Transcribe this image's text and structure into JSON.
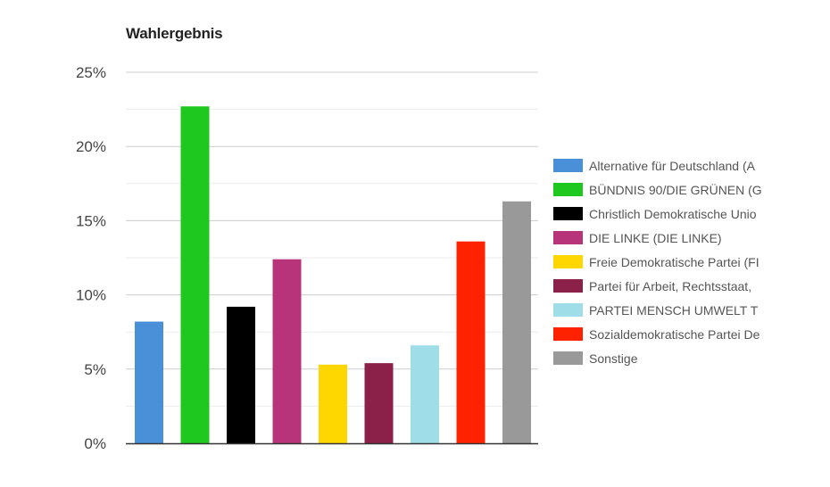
{
  "chart_data": {
    "type": "bar",
    "title": "Wahlergebnis",
    "xlabel": "",
    "ylabel": "",
    "ylim": [
      0,
      25
    ],
    "yticks": [
      0,
      5,
      10,
      15,
      20,
      25
    ],
    "ytick_labels": [
      "0%",
      "5%",
      "10%",
      "15%",
      "20%",
      "25%"
    ],
    "grid": true,
    "legend_position": "right",
    "categories": [
      "Alternative für Deutschland (A",
      "BÜNDNIS 90/DIE GRÜNEN (G",
      "Christlich Demokratische Unio",
      "DIE LINKE (DIE LINKE)",
      "Freie Demokratische Partei (FI",
      "Partei für Arbeit, Rechtsstaat, ",
      "PARTEI MENSCH UMWELT T",
      "Sozialdemokratische Partei De",
      "Sonstige"
    ],
    "values": [
      8.2,
      22.7,
      9.2,
      12.4,
      5.3,
      5.4,
      6.6,
      13.6,
      16.3
    ],
    "colors": [
      "#4a90d9",
      "#1ec81e",
      "#000000",
      "#b8347a",
      "#ffd700",
      "#8b2049",
      "#9fdde8",
      "#ff2200",
      "#999999"
    ]
  }
}
